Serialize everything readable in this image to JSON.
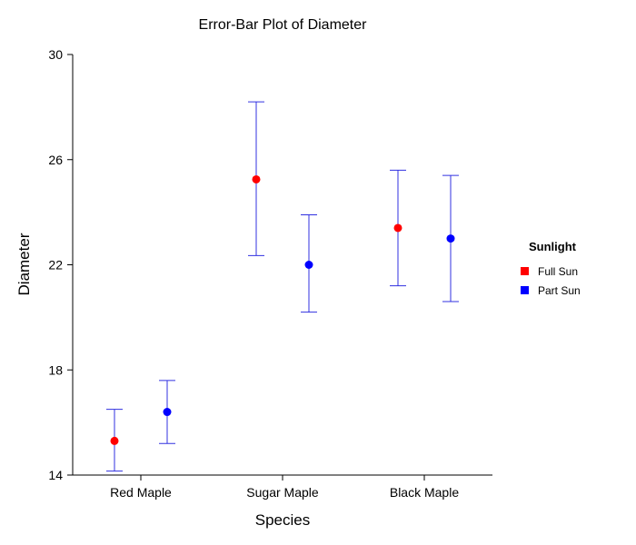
{
  "chart_data": {
    "type": "errorbar",
    "title": "Error-Bar Plot of Diameter",
    "xlabel": "Species",
    "ylabel": "Diameter",
    "categories": [
      "Red Maple",
      "Sugar Maple",
      "Black Maple"
    ],
    "ylim": [
      14,
      30
    ],
    "yticks": [
      14,
      18,
      22,
      26,
      30
    ],
    "legend": {
      "title": "Sunlight",
      "position": "right"
    },
    "series": [
      {
        "name": "Full Sun",
        "color": "#ff0000",
        "means": [
          15.3,
          25.25,
          23.4
        ],
        "upper": [
          16.5,
          28.2,
          25.6
        ],
        "lower": [
          14.15,
          22.35,
          21.2
        ]
      },
      {
        "name": "Part Sun",
        "color": "#0000ff",
        "means": [
          16.4,
          22.0,
          23.0
        ],
        "upper": [
          17.6,
          23.9,
          25.4
        ],
        "lower": [
          15.2,
          20.2,
          20.6
        ]
      }
    ],
    "errorbar_color": "#3030e0",
    "grid": false
  }
}
